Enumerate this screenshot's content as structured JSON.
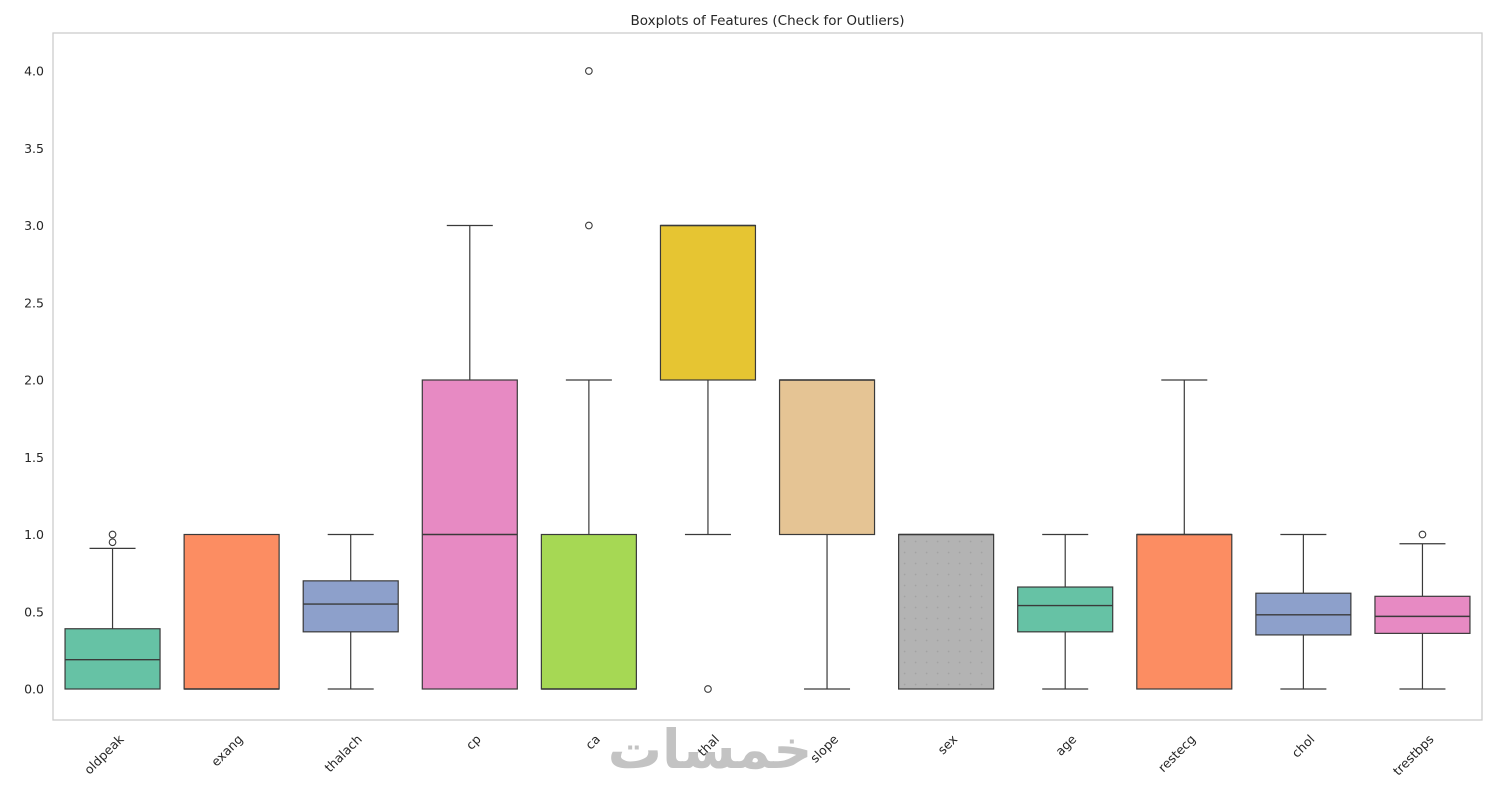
{
  "chart_data": {
    "type": "boxplot",
    "title": "Boxplots of Features (Check for Outliers)",
    "watermark": "خمسات",
    "ylim": [
      -0.2,
      4.25
    ],
    "yticks": [
      0.0,
      0.5,
      1.0,
      1.5,
      2.0,
      2.5,
      3.0,
      3.5,
      4.0
    ],
    "categories": [
      "oldpeak",
      "exang",
      "thalach",
      "cp",
      "ca",
      "thal",
      "slope",
      "sex",
      "age",
      "restecg",
      "chol",
      "trestbps"
    ],
    "legend": "none",
    "grid": false,
    "colors": {
      "background": "#ffffff",
      "frame": "#cccccc",
      "edge": "#3a3a3a",
      "text": "#262626",
      "watermark": "#c3c3c3"
    },
    "boxes": [
      {
        "label": "oldpeak",
        "color": "#66c2a5",
        "whislo": 0.0,
        "q1": 0.0,
        "med": 0.19,
        "q3": 0.39,
        "whishi": 0.91,
        "fliers": [
          0.95,
          1.0
        ]
      },
      {
        "label": "exang",
        "color": "#fc8d62",
        "whislo": 0.0,
        "q1": 0.0,
        "med": 0.0,
        "q3": 1.0,
        "whishi": 1.0,
        "fliers": []
      },
      {
        "label": "thalach",
        "color": "#8da0cb",
        "whislo": 0.0,
        "q1": 0.37,
        "med": 0.55,
        "q3": 0.7,
        "whishi": 1.0,
        "fliers": []
      },
      {
        "label": "cp",
        "color": "#e78ac3",
        "whislo": 0.0,
        "q1": 0.0,
        "med": 1.0,
        "q3": 2.0,
        "whishi": 3.0,
        "fliers": []
      },
      {
        "label": "ca",
        "color": "#a6d854",
        "whislo": 0.0,
        "q1": 0.0,
        "med": 0.0,
        "q3": 1.0,
        "whishi": 2.0,
        "fliers": [
          3.0,
          4.0
        ]
      },
      {
        "label": "thal",
        "color": "#e6c532",
        "whislo": 1.0,
        "q1": 2.0,
        "med": 3.0,
        "q3": 3.0,
        "whishi": 3.0,
        "fliers": [
          0.0
        ]
      },
      {
        "label": "slope",
        "color": "#e5c494",
        "whislo": 0.0,
        "q1": 1.0,
        "med": 2.0,
        "q3": 2.0,
        "whishi": 2.0,
        "fliers": []
      },
      {
        "label": "sex",
        "color": "#b3b3b3",
        "whislo": 0.0,
        "q1": 0.0,
        "med": 1.0,
        "q3": 1.0,
        "whishi": 1.0,
        "fliers": [],
        "texture": "dots"
      },
      {
        "label": "age",
        "color": "#66c2a5",
        "whislo": 0.0,
        "q1": 0.37,
        "med": 0.54,
        "q3": 0.66,
        "whishi": 1.0,
        "fliers": []
      },
      {
        "label": "restecg",
        "color": "#fc8d62",
        "whislo": 0.0,
        "q1": 0.0,
        "med": 1.0,
        "q3": 1.0,
        "whishi": 2.0,
        "fliers": []
      },
      {
        "label": "chol",
        "color": "#8da0cb",
        "whislo": 0.0,
        "q1": 0.35,
        "med": 0.48,
        "q3": 0.62,
        "whishi": 1.0,
        "fliers": []
      },
      {
        "label": "trestbps",
        "color": "#e78ac3",
        "whislo": 0.0,
        "q1": 0.36,
        "med": 0.47,
        "q3": 0.6,
        "whishi": 0.94,
        "fliers": [
          1.0
        ]
      }
    ]
  }
}
